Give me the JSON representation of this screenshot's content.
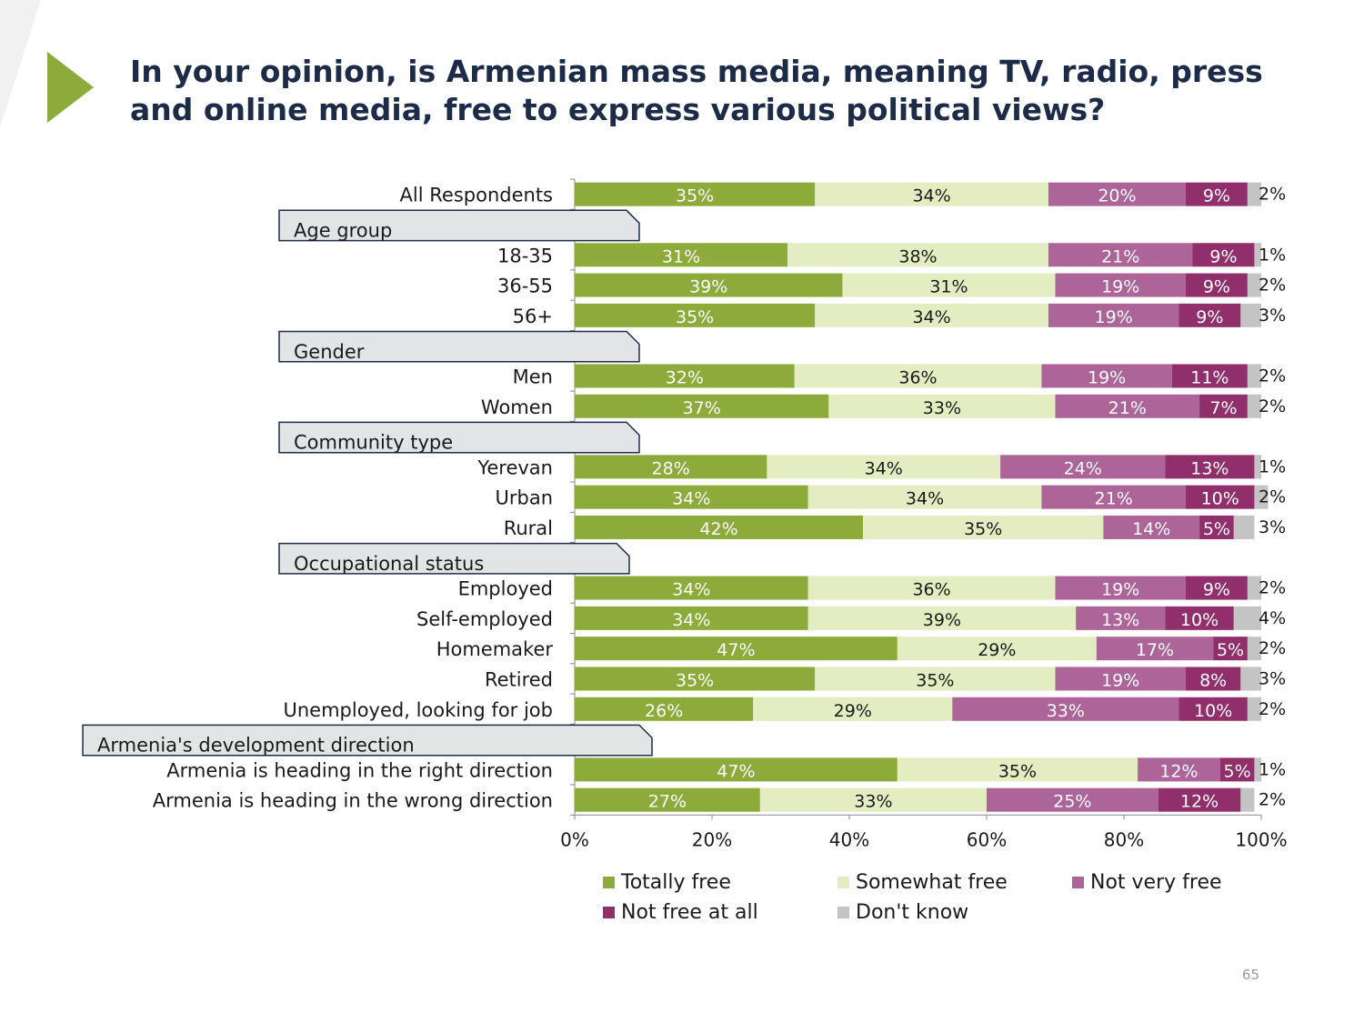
{
  "title": "In your opinion, is Armenian mass media, meaning TV, radio, press and online media, free to express various political views?",
  "page_number": "65",
  "colors": {
    "title": "#1b2b48",
    "accent_triangle": "#8cab3b",
    "group_box_fill": "#e3e4e5",
    "group_box_border": "#1f2d4a"
  },
  "legend": [
    {
      "label": "Totally free",
      "color": "#8cab3b"
    },
    {
      "label": "Somewhat free",
      "color": "#e4ecc2"
    },
    {
      "label": "Not very free",
      "color": "#ad6499"
    },
    {
      "label": "Not free at all",
      "color": "#912f6c"
    },
    {
      "label": "Don't know",
      "color": "#c4c4c4"
    }
  ],
  "chart_data": {
    "type": "bar",
    "orientation": "horizontal",
    "stacked": true,
    "xlim": [
      0,
      100
    ],
    "x_ticks": [
      "0%",
      "20%",
      "40%",
      "60%",
      "80%",
      "100%"
    ],
    "series_names": [
      "Totally free",
      "Somewhat free",
      "Not very free",
      "Not free at all",
      "Don't know"
    ],
    "colors": [
      "#8cab3b",
      "#e4ecc2",
      "#ad6499",
      "#912f6c",
      "#c4c4c4"
    ],
    "rows": [
      {
        "kind": "bar",
        "label": "All Respondents",
        "values": [
          35,
          34,
          20,
          9,
          2
        ]
      },
      {
        "kind": "group",
        "label": "Age group"
      },
      {
        "kind": "bar",
        "label": "18-35",
        "values": [
          31,
          38,
          21,
          9,
          1
        ]
      },
      {
        "kind": "bar",
        "label": "36-55",
        "values": [
          39,
          31,
          19,
          9,
          2
        ]
      },
      {
        "kind": "bar",
        "label": "56+",
        "values": [
          35,
          34,
          19,
          9,
          3
        ]
      },
      {
        "kind": "group",
        "label": "Gender"
      },
      {
        "kind": "bar",
        "label": "Men",
        "values": [
          32,
          36,
          19,
          11,
          2
        ]
      },
      {
        "kind": "bar",
        "label": "Women",
        "values": [
          37,
          33,
          21,
          7,
          2
        ]
      },
      {
        "kind": "group",
        "label": "Community type"
      },
      {
        "kind": "bar",
        "label": "Yerevan",
        "values": [
          28,
          34,
          24,
          13,
          1
        ]
      },
      {
        "kind": "bar",
        "label": "Urban",
        "values": [
          34,
          34,
          21,
          10,
          2
        ]
      },
      {
        "kind": "bar",
        "label": "Rural",
        "values": [
          42,
          35,
          14,
          5,
          3
        ]
      },
      {
        "kind": "group",
        "label": "Occupational status"
      },
      {
        "kind": "bar",
        "label": "Employed",
        "values": [
          34,
          36,
          19,
          9,
          2
        ]
      },
      {
        "kind": "bar",
        "label": "Self-employed",
        "values": [
          34,
          39,
          13,
          10,
          4
        ]
      },
      {
        "kind": "bar",
        "label": "Homemaker",
        "values": [
          47,
          29,
          17,
          5,
          2
        ]
      },
      {
        "kind": "bar",
        "label": "Retired",
        "values": [
          35,
          35,
          19,
          8,
          3
        ]
      },
      {
        "kind": "bar",
        "label": "Unemployed, looking for job",
        "values": [
          26,
          29,
          33,
          10,
          2
        ]
      },
      {
        "kind": "group",
        "label": "Armenia's development direction"
      },
      {
        "kind": "bar",
        "label": "Armenia is heading in the right direction",
        "values": [
          47,
          35,
          12,
          5,
          1
        ]
      },
      {
        "kind": "bar",
        "label": "Armenia is heading in the wrong direction",
        "values": [
          27,
          33,
          25,
          12,
          2
        ]
      }
    ]
  }
}
